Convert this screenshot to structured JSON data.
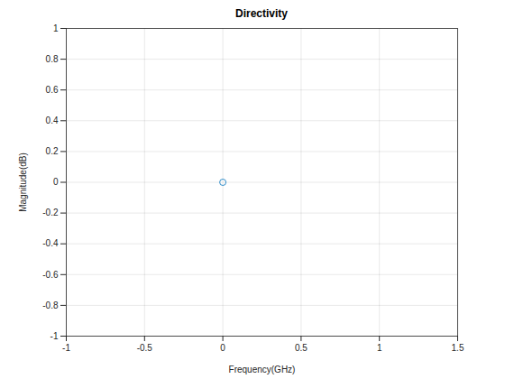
{
  "chart_data": {
    "type": "scatter",
    "title": "Directivity",
    "x_label": "Frequency(GHz)",
    "y_label": "Magnitude(dB)",
    "x": [
      0
    ],
    "values": [
      0
    ],
    "color": "#0072bd",
    "marker": "circle",
    "xlim": [
      -1,
      1.5
    ],
    "xticks": [
      -1,
      -0.5,
      0,
      0.5,
      1,
      1.5
    ],
    "ylim": [
      -1,
      1
    ],
    "yticks": [
      -1,
      -0.8,
      -0.6,
      -0.4,
      -0.2,
      0,
      0.2,
      0.4,
      0.6,
      0.8,
      1
    ],
    "grid": true
  }
}
